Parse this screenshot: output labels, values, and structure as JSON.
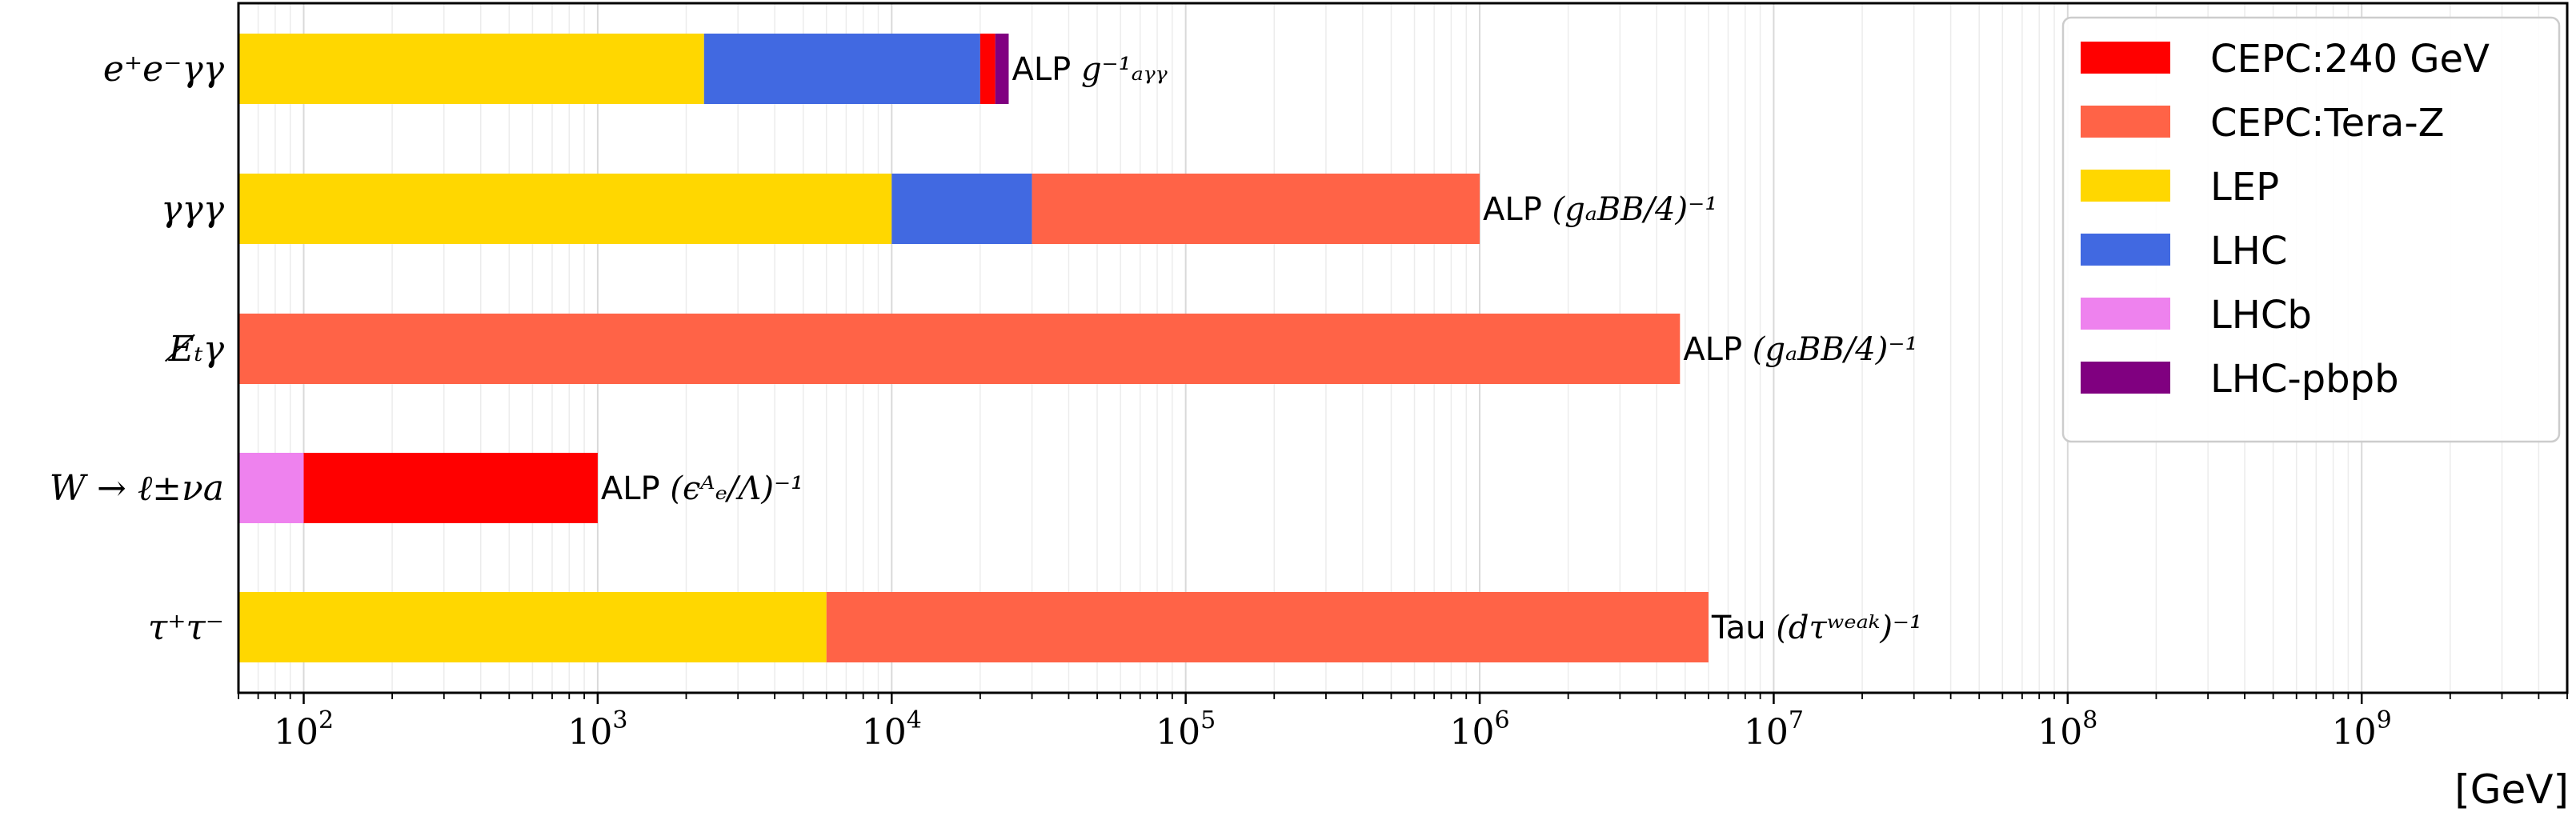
{
  "chart_data": {
    "type": "bar",
    "orientation": "horizontal",
    "stacking": "nested-overlap",
    "x_scale": "log",
    "xlim": [
      60,
      5000000000
    ],
    "grid": true,
    "xlabel": "[GeV]",
    "legend_position": "top-right",
    "colors": {
      "CEPC:240 GeV": "#ff0000",
      "CEPC:Tera-Z": "#ff6347",
      "LEP": "#ffd700",
      "LHC": "#4169e1",
      "LHCb": "#ee82ee",
      "LHC-pbpb": "#800080"
    },
    "legend": [
      "CEPC:240 GeV",
      "CEPC:Tera-Z",
      "LEP",
      "LHC",
      "LHCb",
      "LHC-pbpb"
    ],
    "x_ticks": [
      {
        "value": 100,
        "base": "10",
        "exp": "2"
      },
      {
        "value": 1000,
        "base": "10",
        "exp": "3"
      },
      {
        "value": 10000,
        "base": "10",
        "exp": "4"
      },
      {
        "value": 100000,
        "base": "10",
        "exp": "5"
      },
      {
        "value": 1000000,
        "base": "10",
        "exp": "6"
      },
      {
        "value": 10000000,
        "base": "10",
        "exp": "7"
      },
      {
        "value": 100000000,
        "base": "10",
        "exp": "8"
      },
      {
        "value": 1000000000,
        "base": "10",
        "exp": "9"
      }
    ],
    "categories": [
      {
        "label": "e⁺e⁻γγ",
        "segments": [
          {
            "experiment": "LEP",
            "from": 60,
            "to": 2300
          },
          {
            "experiment": "LHC",
            "from": 2300,
            "to": 20000
          },
          {
            "experiment": "CEPC:240 GeV",
            "from": 20000,
            "to": 22500
          },
          {
            "experiment": "LHC-pbpb",
            "from": 22500,
            "to": 25000
          }
        ],
        "label_prefix": "ALP",
        "label_symbol": "g⁻¹ₐᵧᵧ"
      },
      {
        "label": "γγγ",
        "segments": [
          {
            "experiment": "LEP",
            "from": 60,
            "to": 10000
          },
          {
            "experiment": "LHC",
            "from": 10000,
            "to": 30000
          },
          {
            "experiment": "CEPC:Tera-Z",
            "from": 30000,
            "to": 1000000
          }
        ],
        "label_prefix": "ALP",
        "label_symbol": "(gₐBB/4)⁻¹"
      },
      {
        "label": "E̸ₜγ",
        "segments": [
          {
            "experiment": "CEPC:Tera-Z",
            "from": 60,
            "to": 4800000
          }
        ],
        "label_prefix": "ALP",
        "label_symbol": "(gₐBB/4)⁻¹"
      },
      {
        "label": "W → ℓ±νa",
        "segments": [
          {
            "experiment": "LHCb",
            "from": 60,
            "to": 100
          },
          {
            "experiment": "CEPC:240 GeV",
            "from": 100,
            "to": 1000
          }
        ],
        "label_prefix": "ALP",
        "label_symbol": "(ϵᴬₑ/Λ)⁻¹"
      },
      {
        "label": "τ⁺τ⁻",
        "segments": [
          {
            "experiment": "LEP",
            "from": 60,
            "to": 6000
          },
          {
            "experiment": "CEPC:Tera-Z",
            "from": 6000,
            "to": 6000000
          }
        ],
        "label_prefix": "Tau",
        "label_symbol": "(dτʷᵉᵃᵏ)⁻¹"
      }
    ]
  }
}
